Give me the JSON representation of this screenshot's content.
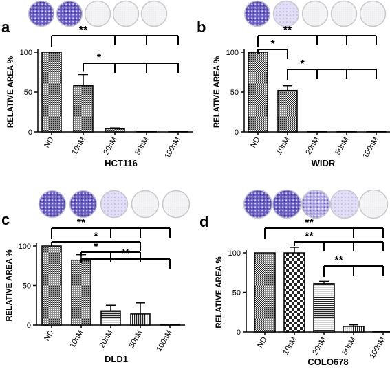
{
  "chart_data": [
    {
      "panel": "a",
      "type": "bar",
      "title": "HCT116",
      "ylabel": "RELATIVE AREA %",
      "ylim": [
        0,
        100
      ],
      "yticks": [
        0,
        50,
        100
      ],
      "categories": [
        "ND",
        "10nM",
        "20nM",
        "50nM",
        "100nM"
      ],
      "values": [
        100,
        58,
        4,
        1,
        0.5
      ],
      "errors": [
        0,
        14,
        1,
        0,
        0
      ],
      "patterns": [
        "checker",
        "checker",
        "checker",
        "checker",
        "checker"
      ],
      "wells": [
        "dense",
        "dense",
        "blank",
        "blank",
        "blank"
      ],
      "significance": [
        {
          "label": "**",
          "from": "ND",
          "to": [
            "20nM",
            "50nM",
            "100nM"
          ]
        },
        {
          "label": "*",
          "from": "10nM",
          "to": [
            "20nM",
            "50nM",
            "100nM"
          ]
        }
      ]
    },
    {
      "panel": "b",
      "type": "bar",
      "title": "WIDR",
      "ylabel": "RELATIVE AREA %",
      "ylim": [
        0,
        100
      ],
      "yticks": [
        0,
        50,
        100
      ],
      "categories": [
        "ND",
        "10nM",
        "20nM",
        "50nM",
        "100nM"
      ],
      "values": [
        100,
        52,
        0.5,
        0.5,
        0.5
      ],
      "errors": [
        0,
        6,
        0,
        0,
        0
      ],
      "patterns": [
        "checker",
        "checker",
        "checker",
        "checker",
        "checker"
      ],
      "wells": [
        "dense",
        "light",
        "blank",
        "blank",
        "blank"
      ],
      "significance": [
        {
          "label": "**",
          "from": "ND",
          "to": [
            "20nM",
            "50nM",
            "100nM"
          ]
        },
        {
          "label": "*",
          "from": "ND",
          "to": [
            "10nM"
          ]
        },
        {
          "label": "*",
          "from": "10nM",
          "to": [
            "20nM",
            "50nM",
            "100nM"
          ]
        }
      ]
    },
    {
      "panel": "c",
      "type": "bar",
      "title": "DLD1",
      "ylabel": "RELATIVE AREA %",
      "ylim": [
        0,
        100
      ],
      "yticks": [
        0,
        50,
        100
      ],
      "categories": [
        "ND",
        "10nM",
        "20nM",
        "50nM",
        "100nM"
      ],
      "values": [
        100,
        82,
        18,
        14,
        0.5
      ],
      "errors": [
        0,
        7,
        7,
        14,
        0
      ],
      "patterns": [
        "checker",
        "checker",
        "hstripe",
        "vstripe",
        "checker"
      ],
      "wells": [
        "dense",
        "dense",
        "light",
        "blank",
        "blank"
      ],
      "significance": [
        {
          "label": "**",
          "from": "ND",
          "to": [
            "20nM",
            "50nM",
            "100nM"
          ]
        },
        {
          "label": "*",
          "from": "ND",
          "to": [
            "50nM"
          ]
        },
        {
          "label": "*",
          "from": "10nM",
          "to": [
            "20nM",
            "50nM"
          ]
        },
        {
          "label": "**",
          "from": "10nM",
          "to": [
            "100nM"
          ]
        }
      ]
    },
    {
      "panel": "d",
      "type": "bar",
      "title": "COLO678",
      "ylabel": "RELATIVE AREA %",
      "ylim": [
        0,
        100
      ],
      "yticks": [
        0,
        50,
        100
      ],
      "categories": [
        "ND",
        "10nM",
        "20nM",
        "50nM",
        "100nM"
      ],
      "values": [
        100,
        100,
        61,
        7,
        0.5
      ],
      "errors": [
        0,
        7,
        3,
        2,
        0
      ],
      "patterns": [
        "checker",
        "bigchecker",
        "hstripe",
        "vstripe",
        "checker"
      ],
      "wells": [
        "dense",
        "dense",
        "medium",
        "light",
        "blank"
      ],
      "significance": [
        {
          "label": "**",
          "from": "ND",
          "to": [
            "50nM",
            "100nM"
          ]
        },
        {
          "label": "**",
          "from": "10nM",
          "to": [
            "20nM",
            "50nM",
            "100nM"
          ]
        },
        {
          "label": "**",
          "from": "20nM",
          "to": [
            "50nM",
            "100nM"
          ]
        }
      ]
    }
  ],
  "style": {
    "bar_outline": "#000000",
    "well_stain": "#4b3fb0",
    "well_rim": "#c8c8cc"
  }
}
